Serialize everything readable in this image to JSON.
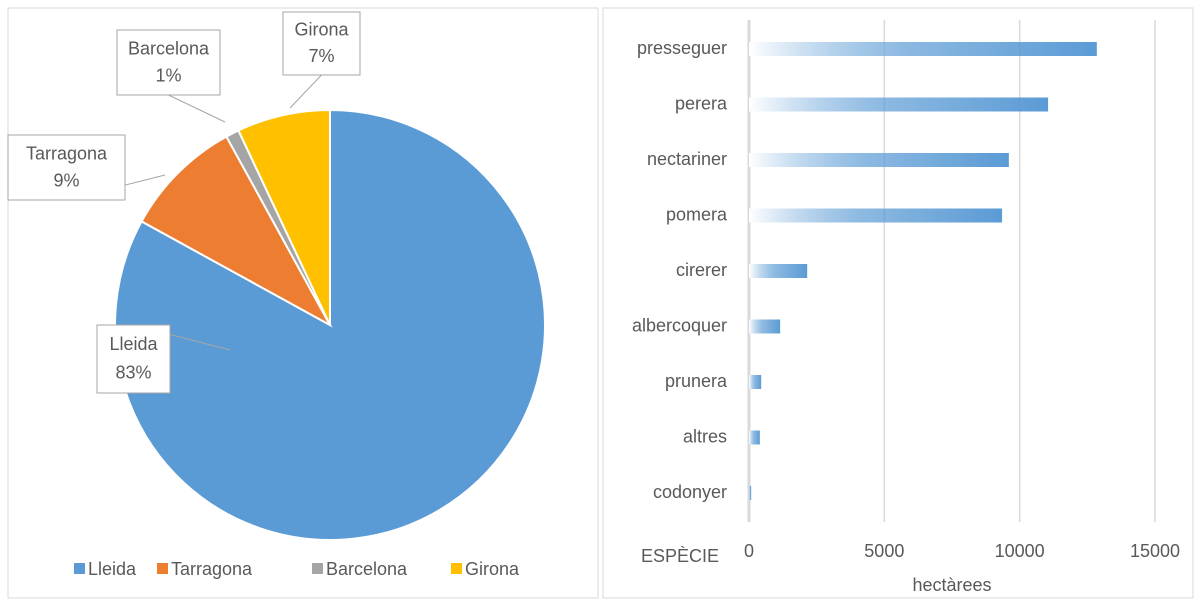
{
  "chart_data": [
    {
      "type": "pie",
      "categories": [
        "Lleida",
        "Tarragona",
        "Barcelona",
        "Girona"
      ],
      "values": [
        83,
        9,
        1,
        7
      ],
      "value_labels": [
        "83%",
        "9%",
        "1%",
        "7%"
      ],
      "colors": [
        "#5b9bd5",
        "#ed7d31",
        "#a5a5a5",
        "#ffc000"
      ],
      "legend": "bottom"
    },
    {
      "type": "hbar",
      "categories": [
        "presseguer",
        "perera",
        "nectariner",
        "pomera",
        "cirerer",
        "albercoquer",
        "prunera",
        "altres",
        "codonyer"
      ],
      "values": [
        12850,
        11050,
        9600,
        9350,
        2150,
        1150,
        450,
        400,
        80
      ],
      "color": "#5b9bd5",
      "ylabel": "ESPÈCIE",
      "xlabel": "hectàrees",
      "xlim": [
        0,
        15000
      ],
      "xticks": [
        0,
        5000,
        10000,
        15000
      ],
      "grid": true
    }
  ]
}
